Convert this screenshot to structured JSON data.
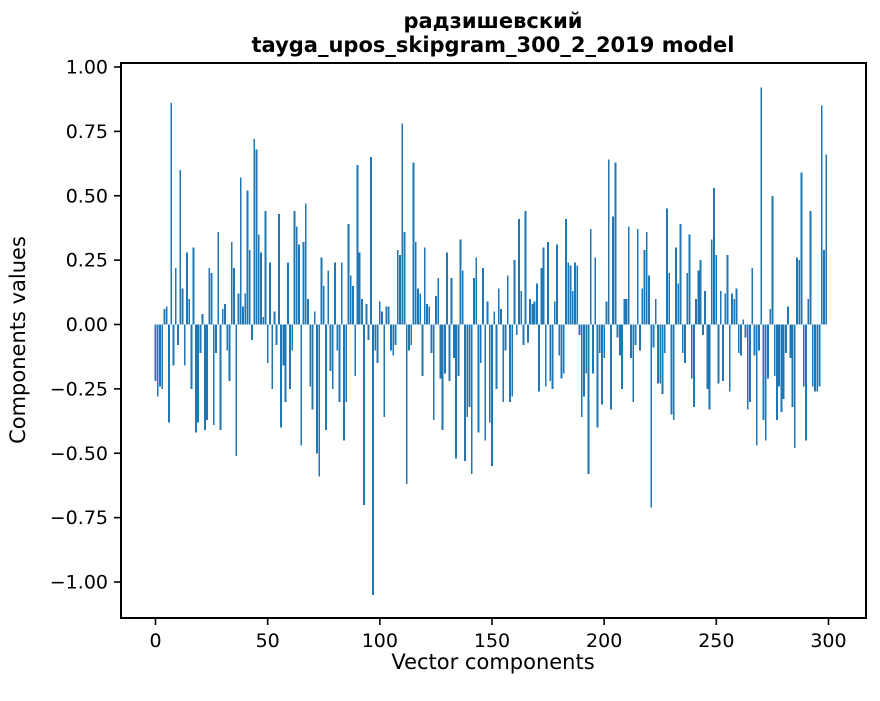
{
  "chart_data": {
    "type": "bar",
    "title": "радзишевский",
    "subtitle": "tayga_upos_skipgram_300_2_2019 model",
    "xlabel": "Vector components",
    "ylabel": "Components values",
    "bar_color": "#1f77b4",
    "grid": false,
    "legend_position": "none",
    "x_axis_range": [
      -16,
      316
    ],
    "y_axis_range": [
      -1.14,
      1.02
    ],
    "x_ticks": [
      "0",
      "50",
      "100",
      "150",
      "200",
      "250",
      "300"
    ],
    "x_tick_values": [
      0,
      50,
      100,
      150,
      200,
      250,
      300
    ],
    "y_ticks": [
      "1.00",
      "0.75",
      "0.50",
      "0.25",
      "0.00",
      "−0.25",
      "−0.50",
      "−0.75",
      "−1.00"
    ],
    "y_tick_values": [
      1.0,
      0.75,
      0.5,
      0.25,
      0.0,
      -0.25,
      -0.5,
      -0.75,
      -1.0
    ],
    "values": [
      -0.22,
      -0.28,
      -0.24,
      -0.25,
      0.06,
      0.07,
      -0.38,
      0.86,
      -0.16,
      0.22,
      -0.08,
      0.6,
      0.14,
      -0.16,
      0.28,
      0.1,
      -0.25,
      0.3,
      -0.42,
      -0.38,
      -0.11,
      0.04,
      -0.41,
      -0.37,
      0.22,
      0.2,
      -0.39,
      -0.11,
      0.36,
      -0.41,
      0.06,
      0.08,
      -0.1,
      -0.22,
      0.32,
      0.22,
      -0.51,
      0.12,
      0.57,
      0.07,
      0.12,
      0.52,
      0.29,
      -0.06,
      0.72,
      0.68,
      0.35,
      0.28,
      0.03,
      0.44,
      -0.15,
      0.24,
      -0.25,
      0.05,
      -0.08,
      0.43,
      -0.4,
      -0.16,
      -0.3,
      0.24,
      -0.25,
      -0.1,
      0.44,
      0.38,
      0.31,
      -0.47,
      0.32,
      0.47,
      0.1,
      -0.24,
      -0.33,
      0.05,
      -0.5,
      -0.59,
      0.26,
      0.15,
      -0.41,
      0.21,
      -0.18,
      -0.25,
      0.24,
      -0.1,
      -0.3,
      0.24,
      -0.45,
      -0.3,
      0.39,
      0.19,
      0.15,
      -0.2,
      0.62,
      0.28,
      0.1,
      -0.7,
      0.08,
      -0.06,
      0.65,
      -1.05,
      -0.1,
      -0.15,
      0.09,
      0.05,
      -0.36,
      0.07,
      0.07,
      -0.1,
      -0.12,
      -0.08,
      0.29,
      0.27,
      0.78,
      0.36,
      -0.62,
      -0.1,
      -0.08,
      0.63,
      0.32,
      0.14,
      0.12,
      -0.2,
      0.3,
      0.08,
      0.07,
      -0.11,
      -0.37,
      0.11,
      0.18,
      -0.21,
      -0.41,
      -0.19,
      0.28,
      -0.22,
      0.18,
      -0.13,
      -0.52,
      -0.2,
      0.33,
      0.21,
      -0.53,
      -0.36,
      -0.32,
      -0.58,
      0.18,
      0.26,
      -0.42,
      -0.15,
      0.22,
      -0.45,
      0.09,
      -0.38,
      -0.55,
      0.05,
      -0.25,
      0.14,
      0.06,
      -0.3,
      -0.1,
      0.19,
      -0.3,
      -0.28,
      0.25,
      -0.04,
      0.41,
      0.13,
      -0.08,
      0.44,
      -0.07,
      0.1,
      0.08,
      0.09,
      0.16,
      -0.26,
      0.22,
      0.3,
      -0.24,
      0.32,
      -0.22,
      -0.25,
      0.09,
      0.31,
      -0.12,
      -0.21,
      -0.19,
      0.41,
      0.24,
      0.23,
      0.13,
      0.24,
      0.23,
      -0.04,
      -0.36,
      -0.28,
      -0.19,
      -0.58,
      0.37,
      -0.19,
      0.26,
      -0.4,
      -0.11,
      -0.31,
      -0.13,
      0.09,
      0.64,
      -0.33,
      0.42,
      0.63,
      -0.05,
      -0.12,
      -0.25,
      0.1,
      0.1,
      0.38,
      -0.13,
      -0.3,
      -0.08,
      0.37,
      -0.1,
      0.14,
      0.29,
      0.36,
      0.19,
      -0.71,
      -0.09,
      0.1,
      -0.23,
      -0.23,
      -0.27,
      -0.11,
      0.45,
      0.2,
      -0.35,
      -0.37,
      0.3,
      0.16,
      0.39,
      -0.11,
      -0.15,
      0.2,
      0.35,
      -0.21,
      -0.32,
      0.1,
      0.21,
      0.25,
      -0.04,
      0.13,
      -0.25,
      -0.33,
      0.33,
      0.53,
      0.27,
      -0.23,
      0.13,
      -0.22,
      0.12,
      0.27,
      -0.26,
      0.12,
      0.1,
      0.14,
      -0.11,
      -0.12,
      0.02,
      -0.05,
      -0.33,
      -0.3,
      0.22,
      -0.12,
      -0.47,
      -0.1,
      0.92,
      -0.37,
      -0.45,
      -0.21,
      0.06,
      0.5,
      -0.2,
      -0.37,
      -0.24,
      -0.34,
      -0.29,
      -0.11,
      0.07,
      -0.13,
      -0.32,
      -0.48,
      0.26,
      0.25,
      0.59,
      -0.24,
      -0.45,
      0.1,
      0.44,
      -0.24,
      -0.26,
      -0.26,
      -0.24,
      0.85,
      0.29,
      0.66
    ]
  }
}
